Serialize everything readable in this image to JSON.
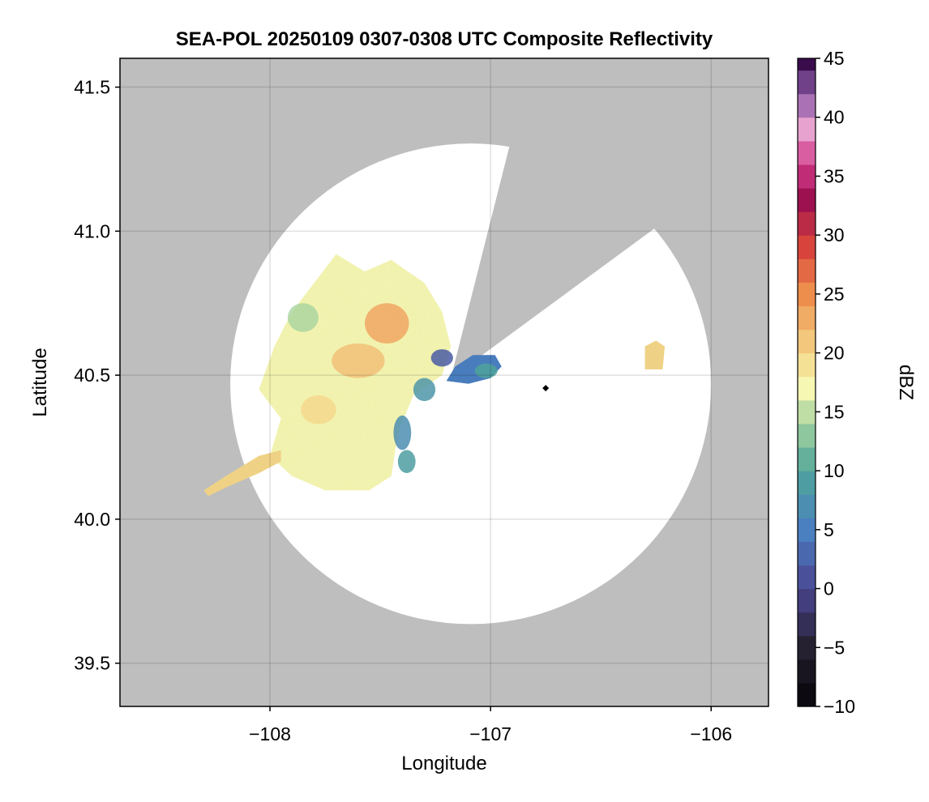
{
  "chart_data": {
    "type": "heatmap",
    "title": "SEA-POL 20250109 0307-0308 UTC Composite Reflectivity",
    "xlabel": "Longitude",
    "ylabel": "Latitude",
    "xlim": [
      -108.68,
      -105.74
    ],
    "ylim": [
      39.35,
      41.6
    ],
    "xticks": [
      -108,
      -107,
      -106
    ],
    "xtick_labels": [
      "−108",
      "−107",
      "−106"
    ],
    "yticks": [
      39.5,
      40.0,
      40.5,
      41.0,
      41.5
    ],
    "ytick_labels": [
      "39.5",
      "40.0",
      "40.5",
      "41.0",
      "41.5"
    ],
    "grid": true,
    "background_color": "#bebebe",
    "radar": {
      "lon": -106.75,
      "lat": 40.455,
      "coverage_center_lon": -107.09,
      "coverage_center_lat": 40.47,
      "coverage_radius_deg": 1.09,
      "blocked_sector_apex": [
        -107.18,
        40.49
      ],
      "blocked_sector_edges": [
        [
          -106.84,
          41.52
        ],
        [
          -106.06,
          41.12
        ]
      ]
    },
    "echo_regions": [
      {
        "name": "main echo",
        "center_lon": -107.72,
        "center_lat": 40.52,
        "dbz_range": [
          0,
          27
        ],
        "typical_dbz": 17
      },
      {
        "name": "southwest band",
        "center_lon": -108.1,
        "center_lat": 40.15,
        "dbz_range": [
          15,
          22
        ],
        "typical_dbz": 20
      },
      {
        "name": "near-radar echo",
        "center_lon": -107.0,
        "center_lat": 40.53,
        "dbz_range": [
          1,
          12
        ],
        "typical_dbz": 5
      },
      {
        "name": "east cell",
        "center_lon": -106.26,
        "center_lat": 40.57,
        "dbz_range": [
          17,
          22
        ],
        "typical_dbz": 20
      }
    ],
    "colorbar": {
      "label": "dBZ",
      "min": -10,
      "max": 45,
      "step": 2,
      "ticks": [
        -10,
        -5,
        0,
        5,
        10,
        15,
        20,
        25,
        30,
        35,
        40,
        45
      ],
      "tick_labels": [
        "−10",
        "−5",
        "0",
        "5",
        "10",
        "15",
        "20",
        "25",
        "30",
        "35",
        "40",
        "45"
      ],
      "colormap_stops": [
        [
          -10,
          "#050308"
        ],
        [
          -5,
          "#262130"
        ],
        [
          0,
          "#4a4590"
        ],
        [
          5,
          "#4a7fc0"
        ],
        [
          10,
          "#4fa59a"
        ],
        [
          14,
          "#a3d19e"
        ],
        [
          17,
          "#f6f7b2"
        ],
        [
          20,
          "#f4d688"
        ],
        [
          25,
          "#ee8e4c"
        ],
        [
          29,
          "#d8443c"
        ],
        [
          33,
          "#9e1150"
        ],
        [
          36,
          "#d23a8a"
        ],
        [
          39,
          "#e8a2cf"
        ],
        [
          42,
          "#8b5aa8"
        ],
        [
          45,
          "#3a0c4c"
        ]
      ]
    }
  }
}
